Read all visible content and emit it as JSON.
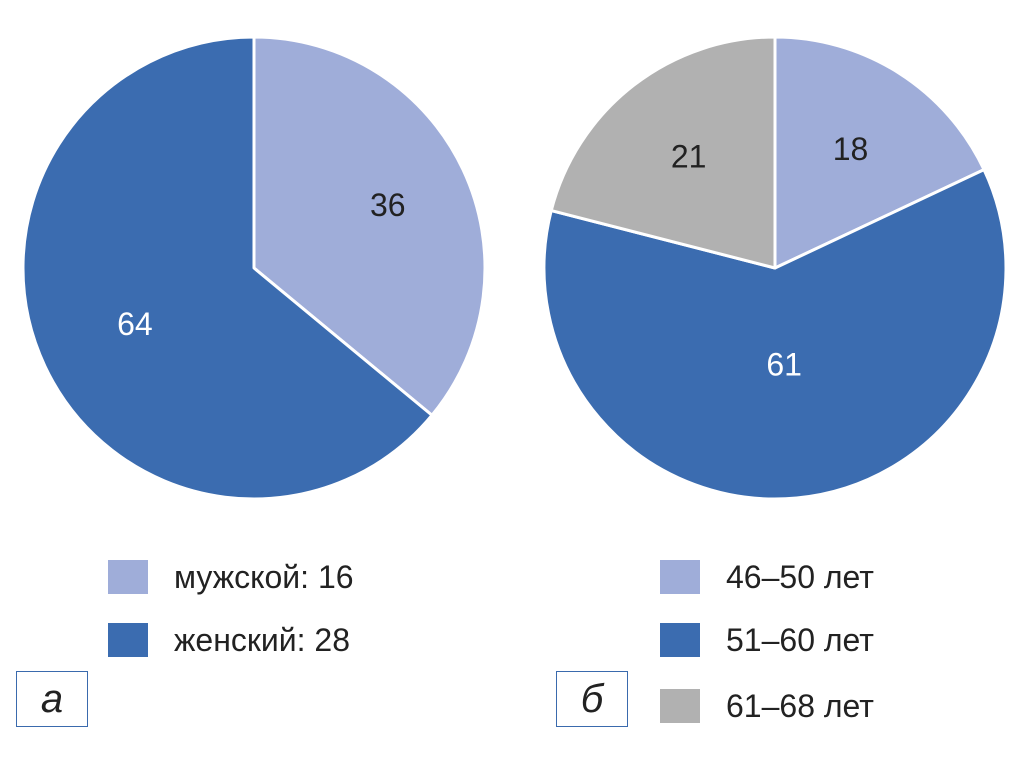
{
  "chart_data": [
    {
      "type": "pie",
      "panel_label": "а",
      "slices": [
        {
          "label": "мужской: 16",
          "value": 36,
          "value_text": "36",
          "color": "#9fadd9",
          "text_color": "#222222"
        },
        {
          "label": "женский: 28",
          "value": 64,
          "value_text": "64",
          "color": "#3b6cb0",
          "text_color": "#ffffff"
        }
      ],
      "start": "12 o'clock",
      "direction": "clockwise",
      "legend_placement": "bottom"
    },
    {
      "type": "pie",
      "panel_label": "б",
      "slices": [
        {
          "label": "46–50 лет",
          "value": 18,
          "value_text": "18",
          "color": "#9fadd9",
          "text_color": "#222222"
        },
        {
          "label": "51–60 лет",
          "value": 61,
          "value_text": "61",
          "color": "#3b6cb0",
          "text_color": "#ffffff"
        },
        {
          "label": "61–68 лет",
          "value": 21,
          "value_text": "21",
          "color": "#b1b1b1",
          "text_color": "#222222"
        }
      ],
      "start": "12 o'clock",
      "direction": "clockwise",
      "legend_placement": "bottom"
    }
  ]
}
